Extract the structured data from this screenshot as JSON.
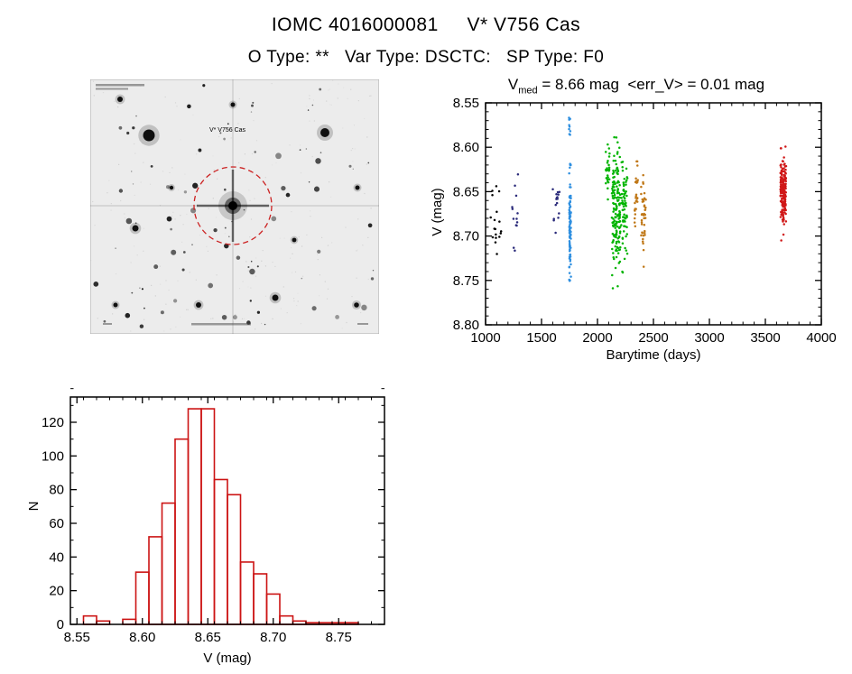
{
  "page": {
    "title": "IOMC 4016000081     V* V756 Cas",
    "subtitle": "O Type: **   Var Type: DSCTC:   SP Type: F0"
  },
  "finder_chart": {
    "target_label": "V* V756 Cas",
    "circle_color": "#cc2222"
  },
  "chart_data": [
    {
      "type": "scatter",
      "title": "V_med = 8.66 mag  <err_V> = 0.01 mag",
      "title_v": "V",
      "title_sub": "med",
      "title_rest": " = 8.66 mag  <err_V> = 0.01 mag",
      "xlabel": "Barytime (days)",
      "ylabel": "V (mag)",
      "xlim": [
        1000,
        4000
      ],
      "ylim": [
        8.55,
        8.8
      ],
      "y_inverted": true,
      "x_ticks": [
        1000,
        1500,
        2000,
        2500,
        3000,
        3500,
        4000
      ],
      "x_tick_labels": [
        "1000",
        "1500",
        "2000",
        "2500",
        "3000",
        "3500",
        "4000"
      ],
      "x_minor_step": 100,
      "y_ticks": [
        8.55,
        8.6,
        8.65,
        8.7,
        8.75,
        8.8
      ],
      "y_tick_labels": [
        "8.55",
        "8.60",
        "8.65",
        "8.70",
        "8.75",
        "8.80"
      ],
      "y_minor_step": 0.01,
      "series": [
        {
          "name": "epoch1-black",
          "color": "#000000",
          "x_min": 1040,
          "x_max": 1155,
          "v_mean": 8.7,
          "v_sd": 0.018,
          "v_min": 8.655,
          "v_max": 8.73,
          "n": 14
        },
        {
          "name": "epoch1b-black",
          "color": "#000000",
          "x_min": 1055,
          "x_max": 1130,
          "v_mean": 8.645,
          "v_sd": 0.007,
          "v_min": 8.635,
          "v_max": 8.66,
          "n": 4
        },
        {
          "name": "epoch2-navy",
          "color": "#2a2a7a",
          "x_min": 1225,
          "x_max": 1295,
          "v_mean": 8.675,
          "v_sd": 0.022,
          "v_min": 8.63,
          "v_max": 8.72,
          "n": 13
        },
        {
          "name": "epoch3-navy",
          "color": "#2a2a7a",
          "x_min": 1598,
          "x_max": 1662,
          "v_mean": 8.662,
          "v_sd": 0.018,
          "v_min": 8.625,
          "v_max": 8.7,
          "n": 16
        },
        {
          "name": "epoch4-blue-upper",
          "color": "#2e8fe0",
          "x_min": 1745,
          "x_max": 1758,
          "v_mean": 8.578,
          "v_sd": 0.009,
          "v_min": 8.56,
          "v_max": 8.598,
          "n": 9
        },
        {
          "name": "epoch4-blue",
          "color": "#2e8fe0",
          "x_min": 1747,
          "x_max": 1763,
          "v_mean": 8.687,
          "v_sd": 0.032,
          "v_min": 8.618,
          "v_max": 8.762,
          "n": 95
        },
        {
          "name": "epoch5-green-a",
          "color": "#00b400",
          "x_min": 2072,
          "x_max": 2108,
          "v_mean": 8.632,
          "v_sd": 0.02,
          "v_min": 8.596,
          "v_max": 8.672,
          "n": 26
        },
        {
          "name": "epoch5-green-b",
          "color": "#00b400",
          "x_min": 2128,
          "x_max": 2205,
          "v_mean": 8.674,
          "v_sd": 0.034,
          "v_min": 8.588,
          "v_max": 8.778,
          "n": 160
        },
        {
          "name": "epoch5-green-c",
          "color": "#00b400",
          "x_min": 2212,
          "x_max": 2268,
          "v_mean": 8.668,
          "v_sd": 0.028,
          "v_min": 8.6,
          "v_max": 8.752,
          "n": 70
        },
        {
          "name": "epoch6-orange-a",
          "color": "#c07818",
          "x_min": 2328,
          "x_max": 2362,
          "v_mean": 8.66,
          "v_sd": 0.02,
          "v_min": 8.612,
          "v_max": 8.7,
          "n": 26
        },
        {
          "name": "epoch6-orange-b",
          "color": "#c07818",
          "x_min": 2388,
          "x_max": 2432,
          "v_mean": 8.676,
          "v_sd": 0.024,
          "v_min": 8.618,
          "v_max": 8.735,
          "n": 42
        },
        {
          "name": "epoch7-red",
          "color": "#d01818",
          "x_min": 3634,
          "x_max": 3686,
          "v_mean": 8.651,
          "v_sd": 0.021,
          "v_min": 8.597,
          "v_max": 8.712,
          "n": 175
        }
      ]
    },
    {
      "type": "bar",
      "title": "",
      "xlabel": "V (mag)",
      "ylabel": "N",
      "color": "#cc1414",
      "xlim": [
        8.545,
        8.785
      ],
      "ylim": [
        0,
        135
      ],
      "y_inverted": false,
      "x_ticks": [
        8.55,
        8.6,
        8.65,
        8.7,
        8.75
      ],
      "x_tick_labels": [
        "8.55",
        "8.60",
        "8.65",
        "8.70",
        "8.75"
      ],
      "x_minor_step": 0.01,
      "y_ticks": [
        0,
        20,
        40,
        60,
        80,
        100,
        120
      ],
      "y_tick_labels": [
        "0",
        "20",
        "40",
        "60",
        "80",
        "100",
        "120"
      ],
      "y_minor_step": 10,
      "bin_start": 8.555,
      "bin_width": 0.01,
      "counts": [
        5,
        2,
        0,
        3,
        31,
        52,
        72,
        110,
        128,
        128,
        86,
        77,
        37,
        30,
        18,
        5,
        2,
        1,
        1,
        1,
        1
      ]
    }
  ]
}
